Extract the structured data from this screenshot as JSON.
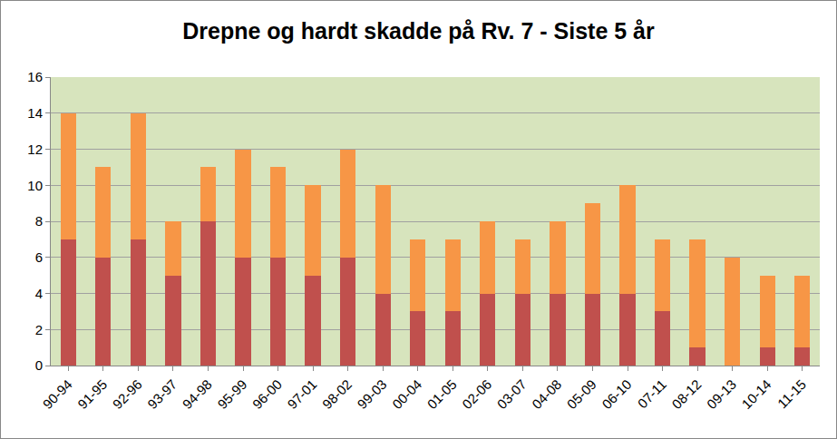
{
  "chart_data": {
    "type": "bar",
    "stacked": true,
    "title": "Drepne og hardt skadde på Rv. 7 - Siste 5 år",
    "categories": [
      "90-94",
      "91-95",
      "92-96",
      "93-97",
      "94-98",
      "95-99",
      "96-00",
      "97-01",
      "98-02",
      "99-03",
      "00-04",
      "01-05",
      "02-06",
      "03-07",
      "04-08",
      "05-09",
      "06-10",
      "07-11",
      "08-12",
      "09-13",
      "10-14",
      "11-15"
    ],
    "series": [
      {
        "color": "#c0504d",
        "values": [
          7,
          6,
          7,
          5,
          8,
          6,
          6,
          5,
          6,
          4,
          3,
          3,
          4,
          4,
          4,
          4,
          4,
          3,
          1,
          0,
          1,
          1
        ]
      },
      {
        "color": "#f79646",
        "values": [
          7,
          5,
          7,
          3,
          3,
          6,
          5,
          5,
          6,
          6,
          4,
          4,
          4,
          3,
          4,
          5,
          6,
          4,
          6,
          6,
          4,
          4
        ]
      }
    ],
    "ylim": [
      0,
      16
    ],
    "yticks": [
      0,
      2,
      4,
      6,
      8,
      10,
      12,
      14,
      16
    ],
    "grid": true
  }
}
